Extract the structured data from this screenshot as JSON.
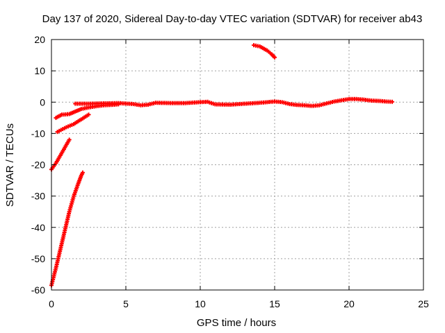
{
  "chart_data": {
    "type": "scatter",
    "title": "Day 137 of 2020, Sidereal Day-to-day VTEC variation (SDTVAR) for receiver ab43",
    "xlabel": "GPS time / hours",
    "ylabel": "SDTVAR / TECUs",
    "xlim": [
      0,
      25
    ],
    "ylim": [
      -60,
      20
    ],
    "xticks": [
      "0",
      "5",
      "10",
      "15",
      "20",
      "25"
    ],
    "yticks": [
      "-60",
      "-50",
      "-40",
      "-30",
      "-20",
      "-10",
      "0",
      "10",
      "20"
    ],
    "grid": true,
    "legend": "none",
    "marker_color": "#ff0000",
    "series": [
      {
        "x": [
          0.0,
          0.3,
          0.6,
          0.9,
          1.2,
          1.5,
          1.8,
          2.0,
          2.1
        ],
        "y": [
          -58.5,
          -53,
          -47,
          -41,
          -35,
          -30,
          -26,
          -23.5,
          -22.5
        ]
      },
      {
        "x": [
          0.0,
          0.3,
          0.6,
          0.9,
          1.2
        ],
        "y": [
          -21.5,
          -19.5,
          -17,
          -14.5,
          -12
        ]
      },
      {
        "x": [
          0.4,
          1.0,
          1.5,
          2.0,
          2.5
        ],
        "y": [
          -9.5,
          -8,
          -7,
          -5.5,
          -4
        ]
      },
      {
        "x": [
          0.3,
          0.7,
          1.2,
          1.6,
          2.0,
          2.5,
          3.0,
          3.5,
          4.0,
          4.5
        ],
        "y": [
          -5,
          -4,
          -3.8,
          -3,
          -2.2,
          -1.7,
          -1.3,
          -1.0,
          -0.9,
          -0.7
        ]
      },
      {
        "x": [
          1.6,
          2.5,
          3.5,
          4.5,
          5.5,
          6.0,
          6.5,
          7.0,
          8.0,
          9.0,
          10.0,
          10.5,
          11.0,
          12.0,
          13.0,
          14.0,
          15.0,
          15.5,
          16.0,
          16.5,
          17.0,
          17.5,
          18.0,
          18.5,
          19.0,
          19.5,
          20.0,
          20.5,
          21.0,
          21.5,
          22.0,
          22.5,
          22.9
        ],
        "y": [
          -0.5,
          -0.5,
          -0.4,
          -0.3,
          -0.6,
          -1.0,
          -0.8,
          -0.2,
          -0.3,
          -0.3,
          0.0,
          0.1,
          -0.7,
          -0.8,
          -0.5,
          -0.2,
          0.2,
          0.0,
          -0.6,
          -0.9,
          -1.0,
          -1.2,
          -1.0,
          -0.4,
          0.2,
          0.6,
          1.0,
          1.0,
          0.8,
          0.5,
          0.4,
          0.2,
          0.1
        ]
      },
      {
        "x": [
          13.6,
          14.0,
          14.5,
          14.8,
          15.0
        ],
        "y": [
          18.2,
          17.8,
          16.5,
          15.3,
          14.3
        ]
      }
    ]
  }
}
